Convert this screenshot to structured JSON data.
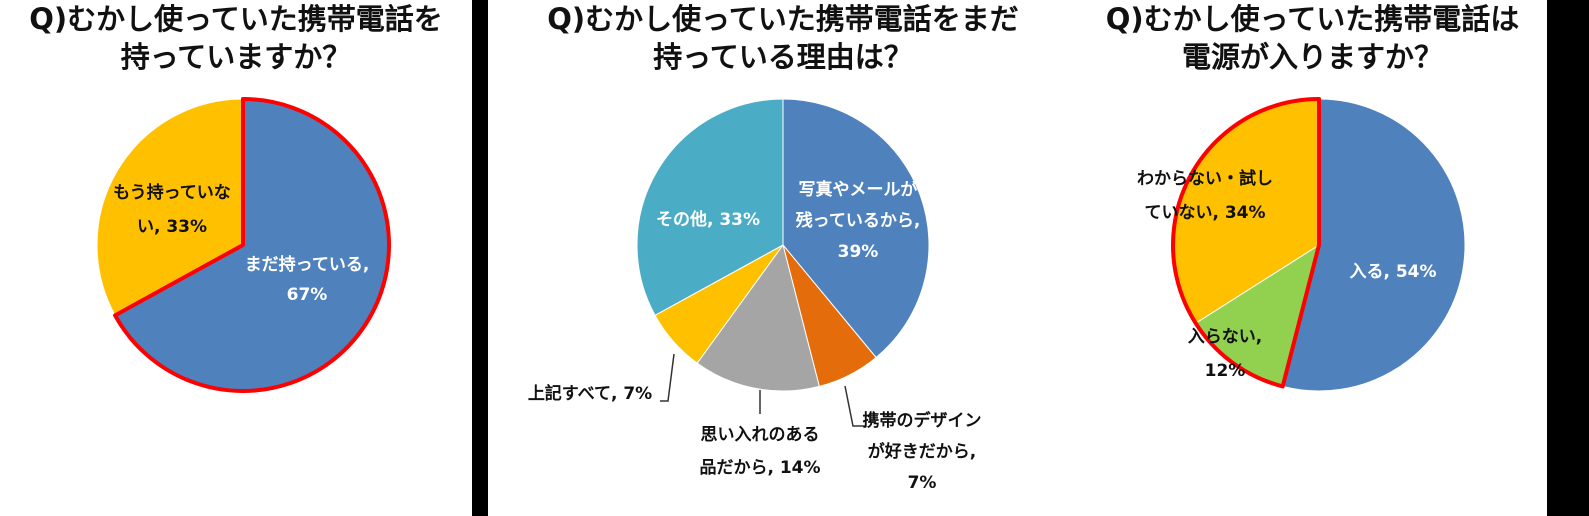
{
  "colors": {
    "blue": "#4f81bd",
    "orange_dark": "#e46c0a",
    "gray": "#a5a5a5",
    "yellow": "#ffc000",
    "teal": "#4bacc6",
    "green": "#92d050",
    "highlight_red": "#ff0000"
  },
  "chart_data": [
    {
      "type": "pie",
      "title": "Q)むかし使っていた携帯電話を持っていますか？",
      "title_lines": [
        "Q)むかし使っていた携帯電話を",
        "持っていますか？"
      ],
      "slices": [
        {
          "label": "まだ持っている",
          "value": 67,
          "color": "#4f81bd",
          "label_lines": [
            "まだ持っている,",
            "67%"
          ]
        },
        {
          "label": "もう持っていない",
          "value": 33,
          "color": "#ffc000",
          "label_lines": [
            "もう持っていな",
            "い, 33%"
          ]
        }
      ],
      "highlight": "まだ持っている",
      "start_position": "12 o'clock, clockwise"
    },
    {
      "type": "pie",
      "title": "Q)むかし使っていた携帯電話をまだ持っている理由は？",
      "title_lines": [
        "Q)むかし使っていた携帯電話をまだ",
        "持っている理由は？"
      ],
      "slices": [
        {
          "label": "写真やメールが残っているから",
          "value": 39,
          "color": "#4f81bd",
          "label_lines": [
            "写真やメールが",
            "残っているから,",
            "39%"
          ]
        },
        {
          "label": "携帯のデザインが好きだから",
          "value": 7,
          "color": "#e46c0a",
          "label_lines": [
            "携帯のデザイン",
            "が好きだから,",
            "7%"
          ]
        },
        {
          "label": "思い入れのある品だから",
          "value": 14,
          "color": "#a5a5a5",
          "label_lines": [
            "思い入れのある",
            "品だから, 14%"
          ]
        },
        {
          "label": "上記すべて",
          "value": 7,
          "color": "#ffc000",
          "label_lines": [
            "上記すべて, 7%"
          ]
        },
        {
          "label": "その他",
          "value": 33,
          "color": "#4bacc6",
          "label_lines": [
            "その他, 33%"
          ]
        }
      ],
      "start_position": "12 o'clock, clockwise"
    },
    {
      "type": "pie",
      "title": "Q)むかし使っていた携帯電話は電源が入りますか？",
      "title_lines": [
        "Q)むかし使っていた携帯電話は",
        "電源が入りますか？"
      ],
      "slices": [
        {
          "label": "入る",
          "value": 54,
          "color": "#4f81bd",
          "label_lines": [
            "入る, 54%"
          ]
        },
        {
          "label": "入らない",
          "value": 12,
          "color": "#92d050",
          "label_lines": [
            "入らない,",
            "12%"
          ]
        },
        {
          "label": "わからない・試していない",
          "value": 34,
          "color": "#ffc000",
          "label_lines": [
            "わからない・試し",
            "ていない, 34%"
          ]
        }
      ],
      "highlight_group": [
        "入らない",
        "わからない・試していない"
      ],
      "start_position": "12 o'clock, clockwise"
    }
  ]
}
